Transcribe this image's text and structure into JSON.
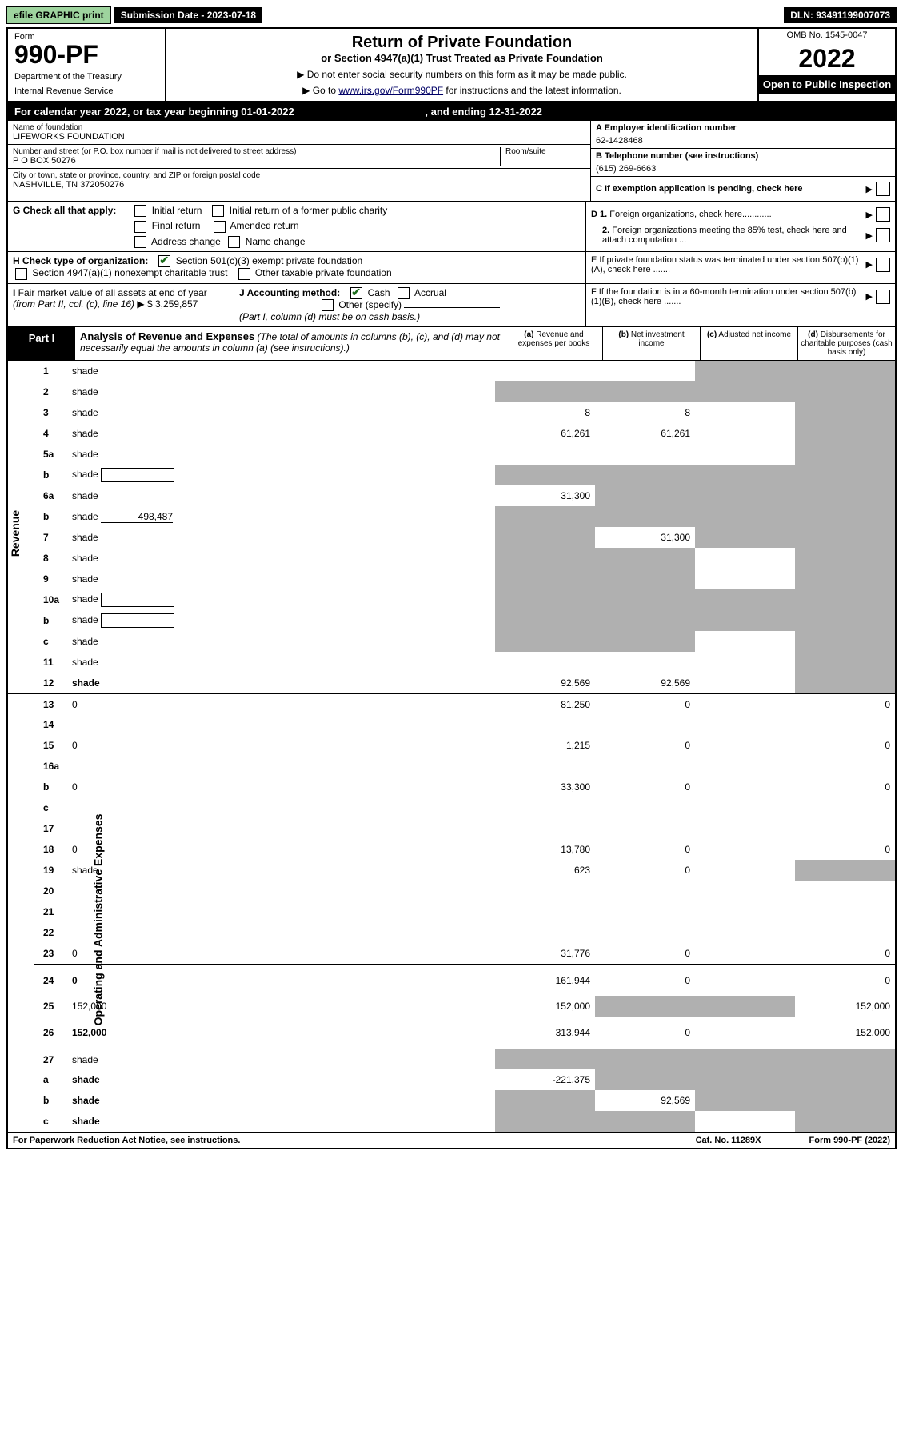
{
  "top": {
    "print_btn": "efile GRAPHIC print",
    "submission": "Submission Date - 2023-07-18",
    "dln": "DLN: 93491199007073"
  },
  "header": {
    "form_label": "Form",
    "form_number": "990-PF",
    "dept": "Department of the Treasury",
    "irs": "Internal Revenue Service",
    "title": "Return of Private Foundation",
    "subtitle": "or Section 4947(a)(1) Trust Treated as Private Foundation",
    "instr1": "▶ Do not enter social security numbers on this form as it may be made public.",
    "instr2_pre": "▶ Go to ",
    "instr2_link": "www.irs.gov/Form990PF",
    "instr2_post": " for instructions and the latest information.",
    "omb": "OMB No. 1545-0047",
    "year": "2022",
    "open": "Open to Public Inspection"
  },
  "cal_year": {
    "text_pre": "For calendar year 2022, or tax year beginning ",
    "begin": "01-01-2022",
    "text_mid": ", and ending ",
    "end": "12-31-2022"
  },
  "name_block": {
    "name_label": "Name of foundation",
    "name": "LIFEWORKS FOUNDATION",
    "addr_label": "Number and street (or P.O. box number if mail is not delivered to street address)",
    "addr": "P O BOX 50276",
    "room_label": "Room/suite",
    "city_label": "City or town, state or province, country, and ZIP or foreign postal code",
    "city": "NASHVILLE, TN  372050276"
  },
  "right_block": {
    "A_label": "A Employer identification number",
    "A_val": "62-1428468",
    "B_label": "B Telephone number (see instructions)",
    "B_val": "(615) 269-6663",
    "C_label": "C If exemption application is pending, check here",
    "D1": "D 1. Foreign organizations, check here............",
    "D2": "2. Foreign organizations meeting the 85% test, check here and attach computation ...",
    "E": "E  If private foundation status was terminated under section 507(b)(1)(A), check here .......",
    "F": "F  If the foundation is in a 60-month termination under section 507(b)(1)(B), check here .......",
    "arrow": "▶"
  },
  "G": {
    "label": "G Check all that apply:",
    "opts": [
      "Initial return",
      "Initial return of a former public charity",
      "Final return",
      "Amended return",
      "Address change",
      "Name change"
    ]
  },
  "H": {
    "label": "H Check type of organization:",
    "opt1": "Section 501(c)(3) exempt private foundation",
    "opt2": "Section 4947(a)(1) nonexempt charitable trust",
    "opt3": "Other taxable private foundation"
  },
  "I": {
    "label_pre": "I Fair market value of all assets at end of year (from Part II, col. (c), line 16) ▶ $ ",
    "value": "3,259,857"
  },
  "J": {
    "label": "J Accounting method:",
    "opts": [
      "Cash",
      "Accrual",
      "Other (specify)"
    ],
    "note": "(Part I, column (d) must be on cash basis.)"
  },
  "part1": {
    "tab": "Part I",
    "title": "Analysis of Revenue and Expenses",
    "title_note": " (The total of amounts in columns (b), (c), and (d) may not necessarily equal the amounts in column (a) (see instructions).)",
    "col_a": "(a) Revenue and expenses per books",
    "col_b": "(b) Net investment income",
    "col_c": "(c) Adjusted net income",
    "col_d": "(d) Disbursements for charitable purposes (cash basis only)"
  },
  "side_labels": {
    "revenue": "Revenue",
    "expenses": "Operating and Administrative Expenses"
  },
  "rows": [
    {
      "n": "1",
      "d": "shade",
      "a": "",
      "b": "",
      "c": "shade"
    },
    {
      "n": "2",
      "d": "shade",
      "a": "shade",
      "b": "shade",
      "c": "shade"
    },
    {
      "n": "3",
      "d": "shade",
      "a": "8",
      "b": "8",
      "c": ""
    },
    {
      "n": "4",
      "d": "shade",
      "a": "61,261",
      "b": "61,261",
      "c": ""
    },
    {
      "n": "5a",
      "d": "shade",
      "a": "",
      "b": "",
      "c": ""
    },
    {
      "n": "b",
      "d": "shade",
      "a": "shade",
      "b": "shade",
      "c": "shade",
      "box": true
    },
    {
      "n": "6a",
      "d": "shade",
      "a": "31,300",
      "b": "shade",
      "c": "shade"
    },
    {
      "n": "b",
      "d": "shade",
      "a": "shade",
      "b": "shade",
      "c": "shade",
      "inline": "498,487"
    },
    {
      "n": "7",
      "d": "shade",
      "a": "shade",
      "b": "31,300",
      "c": "shade"
    },
    {
      "n": "8",
      "d": "shade",
      "a": "shade",
      "b": "shade",
      "c": ""
    },
    {
      "n": "9",
      "d": "shade",
      "a": "shade",
      "b": "shade",
      "c": ""
    },
    {
      "n": "10a",
      "d": "shade",
      "a": "shade",
      "b": "shade",
      "c": "shade",
      "box": true
    },
    {
      "n": "b",
      "d": "shade",
      "a": "shade",
      "b": "shade",
      "c": "shade",
      "box": true
    },
    {
      "n": "c",
      "d": "shade",
      "a": "shade",
      "b": "shade",
      "c": ""
    },
    {
      "n": "11",
      "d": "shade",
      "a": "",
      "b": "",
      "c": ""
    },
    {
      "n": "12",
      "d": "shade",
      "a": "92,569",
      "b": "92,569",
      "c": "",
      "bold": true,
      "bt": true
    },
    {
      "n": "13",
      "d": "0",
      "a": "81,250",
      "b": "0",
      "c": "",
      "bt": true
    },
    {
      "n": "14",
      "d": "",
      "a": "",
      "b": "",
      "c": ""
    },
    {
      "n": "15",
      "d": "0",
      "a": "1,215",
      "b": "0",
      "c": ""
    },
    {
      "n": "16a",
      "d": "",
      "a": "",
      "b": "",
      "c": ""
    },
    {
      "n": "b",
      "d": "0",
      "a": "33,300",
      "b": "0",
      "c": ""
    },
    {
      "n": "c",
      "d": "",
      "a": "",
      "b": "",
      "c": ""
    },
    {
      "n": "17",
      "d": "",
      "a": "",
      "b": "",
      "c": ""
    },
    {
      "n": "18",
      "d": "0",
      "a": "13,780",
      "b": "0",
      "c": ""
    },
    {
      "n": "19",
      "d": "shade",
      "a": "623",
      "b": "0",
      "c": ""
    },
    {
      "n": "20",
      "d": "",
      "a": "",
      "b": "",
      "c": ""
    },
    {
      "n": "21",
      "d": "",
      "a": "",
      "b": "",
      "c": ""
    },
    {
      "n": "22",
      "d": "",
      "a": "",
      "b": "",
      "c": ""
    },
    {
      "n": "23",
      "d": "0",
      "a": "31,776",
      "b": "0",
      "c": ""
    },
    {
      "n": "24",
      "d": "0",
      "a": "161,944",
      "b": "0",
      "c": "",
      "bold": true,
      "bt": true,
      "tall": true
    },
    {
      "n": "25",
      "d": "152,000",
      "a": "152,000",
      "b": "shade",
      "c": "shade"
    },
    {
      "n": "26",
      "d": "152,000",
      "a": "313,944",
      "b": "0",
      "c": "",
      "bold": true,
      "bt": true,
      "tall": true
    },
    {
      "n": "27",
      "d": "shade",
      "a": "shade",
      "b": "shade",
      "c": "shade",
      "bt": true
    },
    {
      "n": "a",
      "d": "shade",
      "a": "-221,375",
      "b": "shade",
      "c": "shade",
      "bold": true
    },
    {
      "n": "b",
      "d": "shade",
      "a": "shade",
      "b": "92,569",
      "c": "shade",
      "bold": true
    },
    {
      "n": "c",
      "d": "shade",
      "a": "shade",
      "b": "shade",
      "c": "",
      "bold": true
    }
  ],
  "footer": {
    "left": "For Paperwork Reduction Act Notice, see instructions.",
    "mid": "Cat. No. 11289X",
    "right": "Form 990-PF (2022)"
  }
}
